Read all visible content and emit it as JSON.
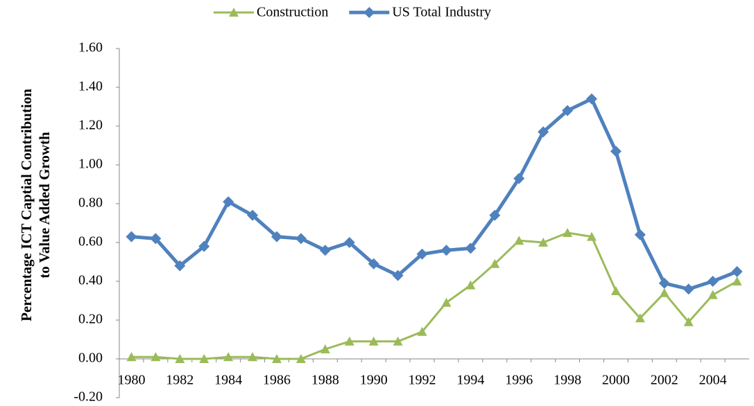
{
  "chart_data": {
    "type": "line",
    "ylabel": [
      "Percentage ICT Captial Contribution",
      "to Value Added Growth"
    ],
    "categories": [
      "1980",
      null,
      "1982",
      null,
      "1984",
      null,
      "1986",
      null,
      "1988",
      null,
      "1990",
      null,
      "1992",
      null,
      "1994",
      null,
      "1996",
      null,
      "1998",
      null,
      "2000",
      null,
      "2002",
      null,
      "2004",
      null
    ],
    "series": [
      {
        "name": "Construction",
        "color": "#9bbb59",
        "marker": "triangle",
        "values": [
          0.01,
          0.01,
          0.0,
          0.0,
          0.01,
          0.01,
          0.0,
          0.0,
          0.05,
          0.09,
          0.09,
          0.09,
          0.14,
          0.29,
          0.38,
          0.49,
          0.61,
          0.6,
          0.65,
          0.63,
          0.35,
          0.21,
          0.34,
          0.19,
          0.33,
          0.4
        ]
      },
      {
        "name": "US Total Industry",
        "color": "#4f81bd",
        "marker": "diamond",
        "values": [
          0.63,
          0.62,
          0.48,
          0.58,
          0.81,
          0.74,
          0.63,
          0.62,
          0.56,
          0.6,
          0.49,
          0.43,
          0.54,
          0.56,
          0.57,
          0.74,
          0.93,
          1.17,
          1.28,
          1.34,
          1.07,
          0.64,
          0.39,
          0.36,
          0.4,
          0.45
        ]
      }
    ],
    "ylim": [
      -0.2,
      1.6
    ],
    "yticks": [
      {
        "value": -0.2,
        "label": "-0.20"
      },
      {
        "value": 0,
        "label": "0.00"
      },
      {
        "value": 0.2,
        "label": "0.20"
      },
      {
        "value": 0.4,
        "label": "0.40"
      },
      {
        "value": 0.6,
        "label": "0.60"
      },
      {
        "value": 0.8,
        "label": "0.80"
      },
      {
        "value": 1,
        "label": "1.00"
      },
      {
        "value": 1.2,
        "label": "1.20"
      },
      {
        "value": 1.4,
        "label": "1.40"
      },
      {
        "value": 1.6,
        "label": "1.60"
      }
    ],
    "legend": "top"
  }
}
